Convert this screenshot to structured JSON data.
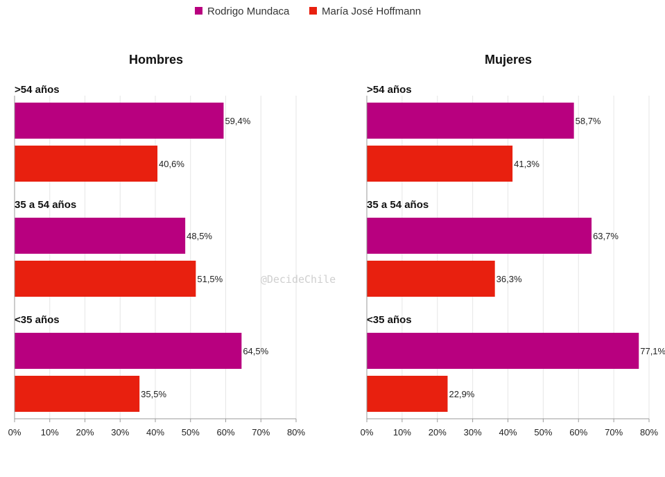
{
  "legend": [
    {
      "name": "Rodrigo Mundaca",
      "color": "#b8007f"
    },
    {
      "name": "María José Hoffmann",
      "color": "#e8200f"
    }
  ],
  "watermark": "@DecideChile",
  "chart_data": [
    {
      "type": "bar",
      "orientation": "horizontal",
      "title": "Hombres",
      "categories": [
        ">54 años",
        "35 a 54 años",
        "<35 años"
      ],
      "series": [
        {
          "name": "Rodrigo Mundaca",
          "values": [
            59.4,
            48.5,
            64.5
          ],
          "labels": [
            "59,4%",
            "48,5%",
            "64,5%"
          ]
        },
        {
          "name": "María José Hoffmann",
          "values": [
            40.6,
            51.5,
            35.5
          ],
          "labels": [
            "40,6%",
            "51,5%",
            "35,5%"
          ]
        }
      ],
      "xlim": [
        0,
        80
      ],
      "xticks": [
        "0%",
        "10%",
        "20%",
        "30%",
        "40%",
        "50%",
        "60%",
        "70%",
        "80%"
      ],
      "grid": true
    },
    {
      "type": "bar",
      "orientation": "horizontal",
      "title": "Mujeres",
      "categories": [
        ">54 años",
        "35 a 54 años",
        "<35 años"
      ],
      "series": [
        {
          "name": "Rodrigo Mundaca",
          "values": [
            58.7,
            63.7,
            77.1
          ],
          "labels": [
            "58,7%",
            "63,7%",
            "77,1%"
          ]
        },
        {
          "name": "María José Hoffmann",
          "values": [
            41.3,
            36.3,
            22.9
          ],
          "labels": [
            "41,3%",
            "36,3%",
            "22,9%"
          ]
        }
      ],
      "xlim": [
        0,
        80
      ],
      "xticks": [
        "0%",
        "10%",
        "20%",
        "30%",
        "40%",
        "50%",
        "60%",
        "70%",
        "80%"
      ],
      "grid": true
    }
  ]
}
